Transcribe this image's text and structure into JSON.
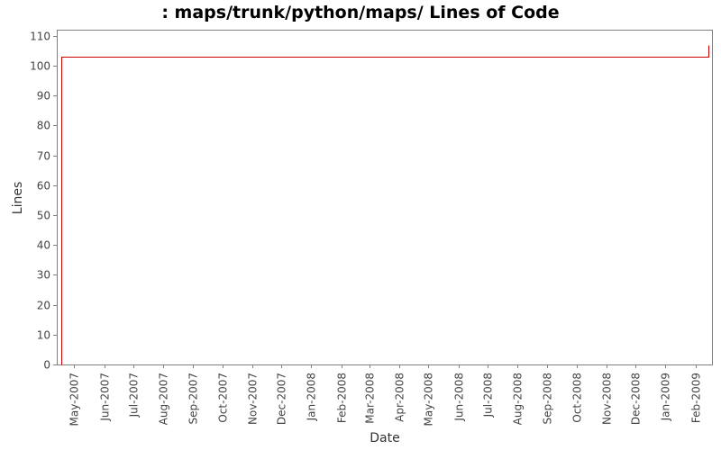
{
  "chart_data": {
    "type": "line",
    "title": ": maps/trunk/python/maps/ Lines of Code",
    "xlabel": "Date",
    "ylabel": "Lines",
    "ylim": [
      0,
      112
    ],
    "yticks": [
      0,
      10,
      20,
      30,
      40,
      50,
      60,
      70,
      80,
      90,
      100,
      110
    ],
    "xlim": [
      "2007-04-13",
      "2009-02-18"
    ],
    "xticks": [
      {
        "date": "2007-05-01",
        "label": "May-2007"
      },
      {
        "date": "2007-06-01",
        "label": "Jun-2007"
      },
      {
        "date": "2007-07-01",
        "label": "Jul-2007"
      },
      {
        "date": "2007-08-01",
        "label": "Aug-2007"
      },
      {
        "date": "2007-09-01",
        "label": "Sep-2007"
      },
      {
        "date": "2007-10-01",
        "label": "Oct-2007"
      },
      {
        "date": "2007-11-01",
        "label": "Nov-2007"
      },
      {
        "date": "2007-12-01",
        "label": "Dec-2007"
      },
      {
        "date": "2008-01-01",
        "label": "Jan-2008"
      },
      {
        "date": "2008-02-01",
        "label": "Feb-2008"
      },
      {
        "date": "2008-03-01",
        "label": "Mar-2008"
      },
      {
        "date": "2008-04-01",
        "label": "Apr-2008"
      },
      {
        "date": "2008-05-01",
        "label": "May-2008"
      },
      {
        "date": "2008-06-01",
        "label": "Jun-2008"
      },
      {
        "date": "2008-07-01",
        "label": "Jul-2008"
      },
      {
        "date": "2008-08-01",
        "label": "Aug-2008"
      },
      {
        "date": "2008-09-01",
        "label": "Sep-2008"
      },
      {
        "date": "2008-10-01",
        "label": "Oct-2008"
      },
      {
        "date": "2008-11-01",
        "label": "Nov-2008"
      },
      {
        "date": "2008-12-01",
        "label": "Dec-2008"
      },
      {
        "date": "2009-01-01",
        "label": "Jan-2009"
      },
      {
        "date": "2009-02-01",
        "label": "Feb-2009"
      }
    ],
    "series": [
      {
        "color": "#cc0000",
        "step": true,
        "points": [
          {
            "date": "2007-04-18",
            "value": 0
          },
          {
            "date": "2007-04-18",
            "value": 103
          },
          {
            "date": "2009-02-14",
            "value": 103
          },
          {
            "date": "2009-02-14",
            "value": 107
          }
        ]
      }
    ],
    "grid": false,
    "legend": "none",
    "colors": {
      "plot_border": "#808080",
      "axis_line": "#808080",
      "tick_label": "#444444",
      "title": "#000000"
    }
  }
}
